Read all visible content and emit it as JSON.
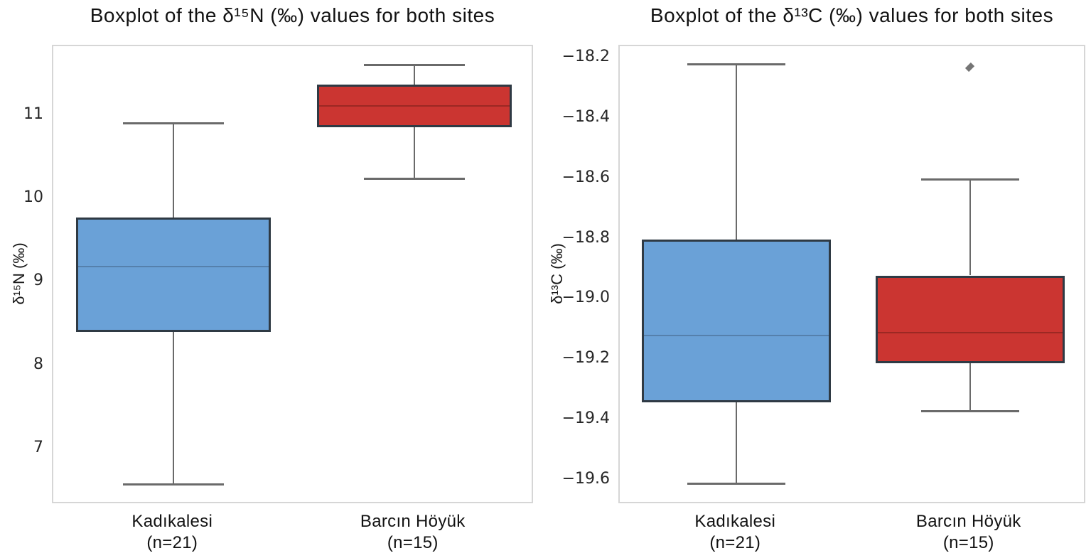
{
  "figure": {
    "background": "#ffffff",
    "spine_color": "#d6d6d6",
    "whisker_color": "#6a6a6a",
    "box_edge_color": "#2f3a44",
    "outlier_color": "#757575"
  },
  "chart_data": [
    {
      "type": "boxplot",
      "title": "Boxplot of the δ¹⁵N (‰) values  for both sites",
      "ylabel": "δ¹⁵N (‰)",
      "ylim": [
        6.33,
        11.84
      ],
      "grid": false,
      "yticks": [
        {
          "value": 11,
          "label": "11"
        },
        {
          "value": 10,
          "label": "10"
        },
        {
          "value": 9,
          "label": "9"
        },
        {
          "value": 8,
          "label": "8"
        },
        {
          "value": 7,
          "label": "7"
        }
      ],
      "categories": [
        {
          "label": "Kadıkalesi",
          "sublabel": "(n=21)"
        },
        {
          "label": "Barcın Höyük",
          "sublabel": "(n=15)"
        }
      ],
      "series": [
        {
          "name": "Kadıkalesi (n=21)",
          "fill": "#6aa1d7",
          "median_color": "#5580ac",
          "whisker_low": 6.58,
          "q1": 8.41,
          "median": 9.19,
          "q3": 9.78,
          "whisker_high": 10.92,
          "outliers": []
        },
        {
          "name": "Barcın Höyük (n=15)",
          "fill": "#cb3531",
          "median_color": "#9c2823",
          "whisker_low": 10.25,
          "q1": 10.87,
          "median": 11.12,
          "q3": 11.38,
          "whisker_high": 11.62,
          "outliers": []
        }
      ]
    },
    {
      "type": "boxplot",
      "title": "Boxplot of the δ¹³C (‰) values  for both sites",
      "ylabel": "δ¹³C (‰)",
      "ylim": [
        -19.68,
        -18.16
      ],
      "grid": false,
      "yticks": [
        {
          "value": -18.2,
          "label": "−18.2"
        },
        {
          "value": -18.4,
          "label": "−18.4"
        },
        {
          "value": -18.6,
          "label": "−18.6"
        },
        {
          "value": -18.8,
          "label": "−18.8"
        },
        {
          "value": -19.0,
          "label": "−19.0"
        },
        {
          "value": -19.2,
          "label": "−19.2"
        },
        {
          "value": -19.4,
          "label": "−19.4"
        },
        {
          "value": -19.6,
          "label": "−19.6"
        }
      ],
      "categories": [
        {
          "label": "Kadıkalesi",
          "sublabel": "(n=21)"
        },
        {
          "label": "Barcın Höyük",
          "sublabel": "(n=15)"
        }
      ],
      "series": [
        {
          "name": "Kadıkalesi (n=21)",
          "fill": "#6aa1d7",
          "median_color": "#5580ac",
          "whisker_low": -19.61,
          "q1": -19.34,
          "median": -19.12,
          "q3": -18.8,
          "whisker_high": -18.22,
          "outliers": []
        },
        {
          "name": "Barcın Höyük (n=15)",
          "fill": "#cb3531",
          "median_color": "#9c2823",
          "whisker_low": -19.37,
          "q1": -19.21,
          "median": -19.11,
          "q3": -18.92,
          "whisker_high": -18.6,
          "outliers": [
            -18.23
          ]
        }
      ]
    }
  ]
}
